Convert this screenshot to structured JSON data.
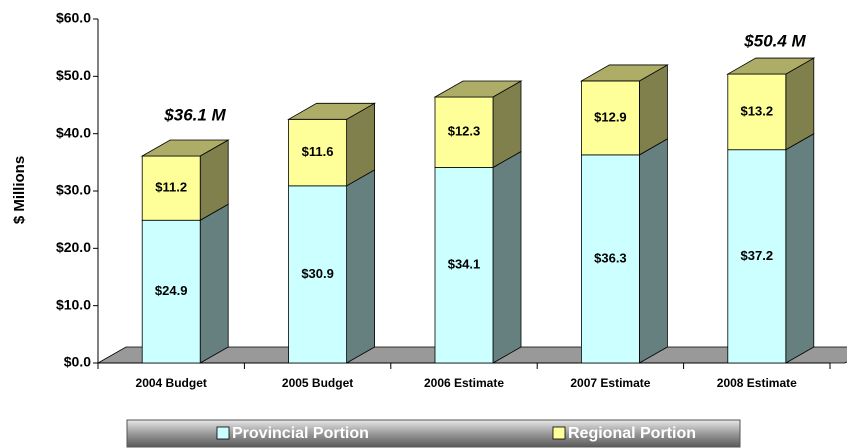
{
  "chart_data": {
    "type": "bar",
    "stacked": true,
    "y_label": "$ Millions",
    "categories": [
      "2004 Budget",
      "2005 Budget",
      "2006 Estimate",
      "2007 Estimate",
      "2008 Estimate"
    ],
    "series": [
      {
        "name": "Provincial Portion",
        "color": "#ccffff",
        "values": [
          24.9,
          30.9,
          34.1,
          36.3,
          37.2
        ],
        "value_labels": [
          "$24.9",
          "$30.9",
          "$34.1",
          "$36.3",
          "$37.2"
        ]
      },
      {
        "name": "Regional Portion",
        "color": "#ffff99",
        "values": [
          11.2,
          11.6,
          12.3,
          12.9,
          13.2
        ],
        "value_labels": [
          "$11.2",
          "$11.6",
          "$12.3",
          "$12.9",
          "$13.2"
        ]
      }
    ],
    "annotations": [
      "$36.1 M",
      "$50.4 M"
    ],
    "ylim": [
      0,
      60
    ],
    "yticks": [
      {
        "value": 0,
        "label": "$0.0"
      },
      {
        "value": 10,
        "label": "$10.0"
      },
      {
        "value": 20,
        "label": "$20.0"
      },
      {
        "value": 30,
        "label": "$30.0"
      },
      {
        "value": 40,
        "label": "$40.0"
      },
      {
        "value": 50,
        "label": "$50.0"
      },
      {
        "value": 60,
        "label": "$60.0"
      }
    ],
    "legend": "bottom"
  }
}
